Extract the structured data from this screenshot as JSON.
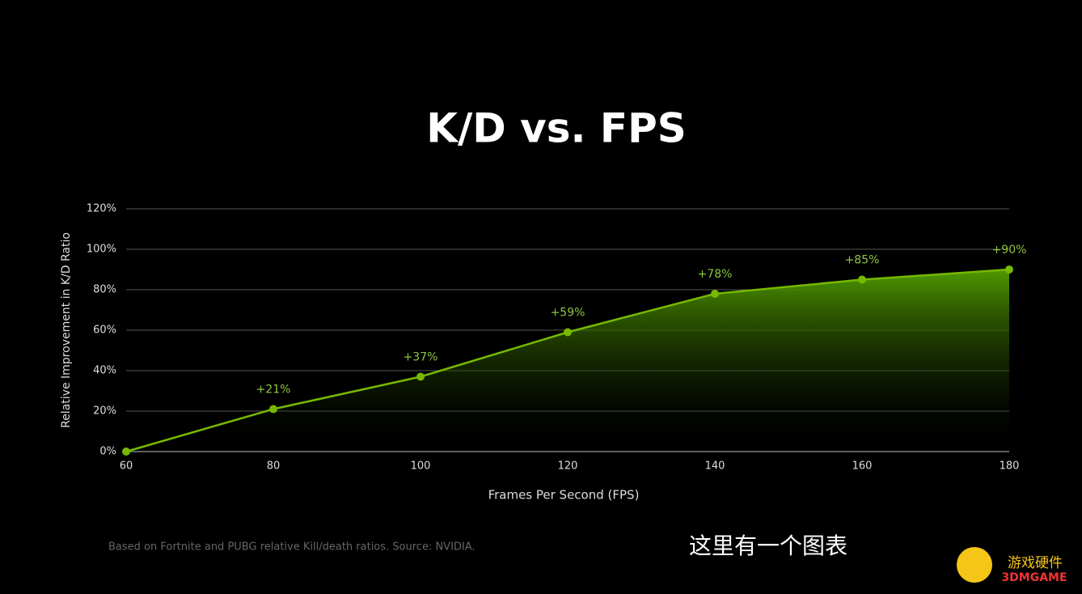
{
  "chart_data": {
    "type": "area",
    "title": "K/D vs. FPS",
    "x": [
      60,
      80,
      100,
      120,
      140,
      160,
      180
    ],
    "values": [
      0,
      21,
      37,
      59,
      78,
      85,
      90
    ],
    "value_labels": [
      null,
      "+21%",
      "+37%",
      "+59%",
      "+78%",
      "+85%",
      "+90%"
    ],
    "color": "#76b900",
    "xlabel": "Frames Per Second (FPS)",
    "ylabel": "Relative Improvement in K/D Ratio",
    "xlim": [
      60,
      180
    ],
    "xticks": [
      60,
      80,
      100,
      120,
      140,
      160,
      180
    ],
    "ylim": [
      0,
      120
    ],
    "yticks": [
      {
        "value": 0,
        "label": "0%"
      },
      {
        "value": 20,
        "label": "20%"
      },
      {
        "value": 40,
        "label": "40%"
      },
      {
        "value": 60,
        "label": "60%"
      },
      {
        "value": 80,
        "label": "80%"
      },
      {
        "value": 100,
        "label": "100%"
      },
      {
        "value": 120,
        "label": "120%"
      }
    ],
    "grid": true,
    "note": "Based on Fortnite and PUBG relative Kill/death ratios. Source: NVIDIA.",
    "caption": "这里有一个图表"
  },
  "watermark": {
    "text": "游戏硬件",
    "brand": "3DMGAME"
  }
}
